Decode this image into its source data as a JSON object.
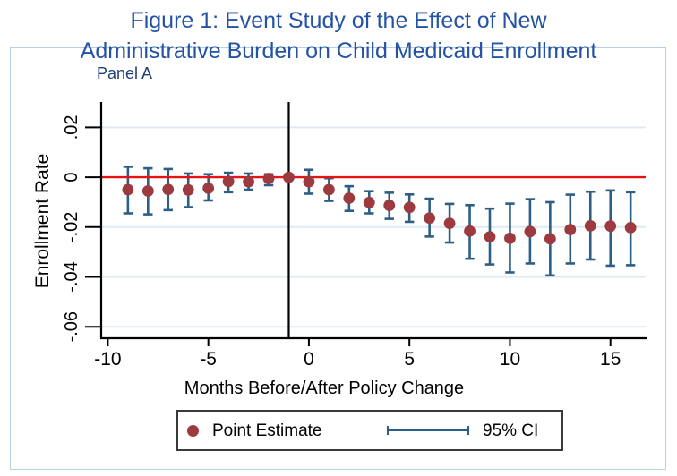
{
  "figure": {
    "title_line1": "Figure 1: Event Study of the Effect of New",
    "title_line2": "Administrative Burden on Child Medicaid Enrollment",
    "panel_label": "Panel A"
  },
  "legend": {
    "point_estimate_label": "Point Estimate",
    "ci_label": "95% CI"
  },
  "colors": {
    "title": "#2453a6",
    "panel_label": "#1e3f77",
    "marker": "#9c3a40",
    "ci_whisker": "#2d5f86",
    "zero_line": "#e81414",
    "event_line": "#000000",
    "gridline": "#dde9f3",
    "figure_border": "#b9d0e2",
    "axis": "#000000",
    "legend_border": "#3a3a3a"
  },
  "chart_data": {
    "type": "scatter",
    "title": "Figure 1: Event Study of the Effect of New Administrative Burden on Child Medicaid Enrollment",
    "panel": "Panel A",
    "xlabel": "Months Before/After Policy Change",
    "ylabel": "Enrollment Rate",
    "xlim": [
      -10.33,
      16.75
    ],
    "ylim": [
      -0.0646,
      0.0302
    ],
    "x_ticks": [
      -10,
      -5,
      0,
      5,
      10,
      15
    ],
    "x_tick_labels": [
      "-10",
      "-5",
      "0",
      "5",
      "10",
      "15"
    ],
    "y_ticks": [
      0.02,
      0,
      -0.02,
      -0.04,
      -0.06
    ],
    "y_tick_labels": [
      ".02",
      "0",
      "-.02",
      "-.04",
      "-.06"
    ],
    "y_gridlines": [
      0.02,
      -0.02,
      -0.04,
      -0.06
    ],
    "grid": true,
    "reference_line_y": 0,
    "event_line_x": -1,
    "legend_position": "bottom",
    "series": [
      {
        "name": "Point Estimate",
        "x": [
          -9,
          -8,
          -7,
          -6,
          -5,
          -4,
          -3,
          -2,
          -1,
          0,
          1,
          2,
          3,
          4,
          5,
          6,
          7,
          8,
          9,
          10,
          11,
          12,
          13,
          14,
          15,
          16
        ],
        "y": [
          -0.005,
          -0.0055,
          -0.0049,
          -0.0051,
          -0.0044,
          -0.0017,
          -0.0018,
          -0.0005,
          0,
          -0.0018,
          -0.005,
          -0.0084,
          -0.0101,
          -0.0113,
          -0.0121,
          -0.0164,
          -0.0185,
          -0.0216,
          -0.0239,
          -0.0245,
          -0.0218,
          -0.0247,
          -0.021,
          -0.0195,
          -0.0196,
          -0.0202
        ],
        "ci_high": [
          0.0042,
          0.0036,
          0.0033,
          0.0015,
          0.0012,
          0.0018,
          0.0015,
          0.0012,
          null,
          0.003,
          -0.0004,
          -0.0036,
          -0.0056,
          -0.0062,
          -0.0069,
          -0.0086,
          -0.0107,
          -0.0112,
          -0.0126,
          -0.0106,
          -0.0088,
          -0.01,
          -0.007,
          -0.0058,
          -0.0053,
          -0.006
        ],
        "ci_low": [
          -0.0145,
          -0.0149,
          -0.0132,
          -0.012,
          -0.0093,
          -0.006,
          -0.005,
          -0.0032,
          null,
          -0.0066,
          -0.0095,
          -0.0135,
          -0.0145,
          -0.0167,
          -0.0179,
          -0.0238,
          -0.0262,
          -0.0327,
          -0.035,
          -0.0382,
          -0.0346,
          -0.0394,
          -0.0346,
          -0.033,
          -0.0355,
          -0.0353
        ]
      }
    ]
  }
}
